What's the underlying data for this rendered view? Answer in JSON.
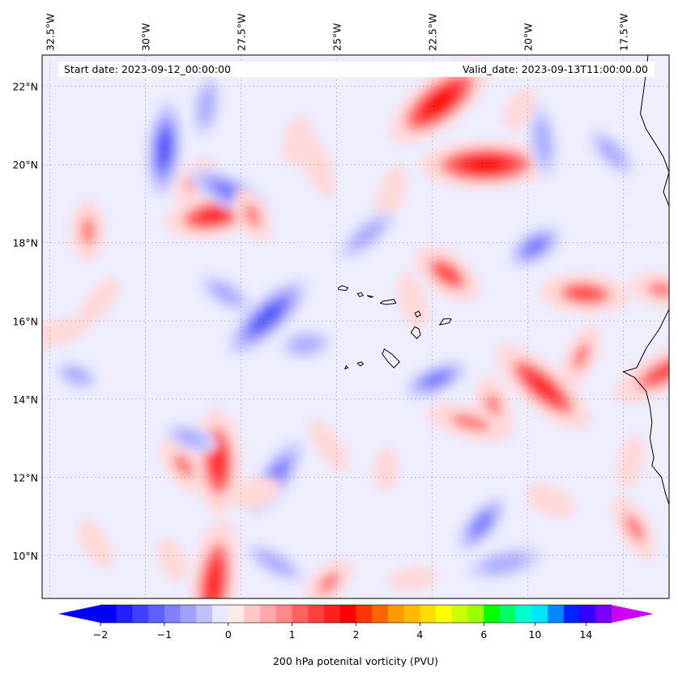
{
  "map": {
    "start_date_text": "Start date: 2023-09-12_00:00:00",
    "valid_date_text": "Valid_date: 2023-09-13T11:00:00.00",
    "extent": {
      "lon_min": -32.7,
      "lon_max": -16.3,
      "lat_min": 8.9,
      "lat_max": 22.8
    },
    "lon_ticks": [
      {
        "value": -32.5,
        "label": "32.5°W"
      },
      {
        "value": -30.0,
        "label": "30°W"
      },
      {
        "value": -27.5,
        "label": "27.5°W"
      },
      {
        "value": -25.0,
        "label": "25°W"
      },
      {
        "value": -22.5,
        "label": "22.5°W"
      },
      {
        "value": -20.0,
        "label": "20°W"
      },
      {
        "value": -17.5,
        "label": "17.5°W"
      }
    ],
    "lat_ticks": [
      {
        "value": 10,
        "label": "10°N"
      },
      {
        "value": 12,
        "label": "12°N"
      },
      {
        "value": 14,
        "label": "14°N"
      },
      {
        "value": 16,
        "label": "16°N"
      },
      {
        "value": 18,
        "label": "18°N"
      },
      {
        "value": 20,
        "label": "20°N"
      },
      {
        "value": 22,
        "label": "22°N"
      }
    ],
    "background_color": "#eeeeff",
    "features": [
      {
        "lon": -31.5,
        "lat": 18.3,
        "value": 1.5
      },
      {
        "lon": -31.2,
        "lat": 16.5,
        "value": 0.8
      },
      {
        "lon": -32.3,
        "lat": 15.7,
        "value": 0.8
      },
      {
        "lon": -31.8,
        "lat": 14.6,
        "value": -0.8
      },
      {
        "lon": -31.3,
        "lat": 10.3,
        "value": 0.8
      },
      {
        "lon": -29.5,
        "lat": 20.4,
        "value": -1.6
      },
      {
        "lon": -28.7,
        "lat": 19.6,
        "value": 1.2
      },
      {
        "lon": -28.2,
        "lat": 18.7,
        "value": 2.2
      },
      {
        "lon": -27.8,
        "lat": 19.3,
        "value": -1.4
      },
      {
        "lon": -27.2,
        "lat": 18.7,
        "value": 1.3
      },
      {
        "lon": -28.4,
        "lat": 21.5,
        "value": -1.0
      },
      {
        "lon": -26.8,
        "lat": 16.1,
        "value": -1.8
      },
      {
        "lon": -25.8,
        "lat": 15.4,
        "value": -1.1
      },
      {
        "lon": -27.9,
        "lat": 16.7,
        "value": -0.9
      },
      {
        "lon": -25.5,
        "lat": 20.0,
        "value": 0.9
      },
      {
        "lon": -26.0,
        "lat": 20.6,
        "value": 1.1
      },
      {
        "lon": -22.3,
        "lat": 21.6,
        "value": 2.8
      },
      {
        "lon": -21.1,
        "lat": 20.0,
        "value": 2.5
      },
      {
        "lon": -22.1,
        "lat": 17.2,
        "value": 2.0
      },
      {
        "lon": -23.0,
        "lat": 16.5,
        "value": 0.9
      },
      {
        "lon": -23.6,
        "lat": 19.2,
        "value": 0.8
      },
      {
        "lon": -19.8,
        "lat": 17.9,
        "value": -1.4
      },
      {
        "lon": -18.5,
        "lat": 16.7,
        "value": 1.9
      },
      {
        "lon": -19.6,
        "lat": 14.3,
        "value": 2.2
      },
      {
        "lon": -20.9,
        "lat": 13.8,
        "value": 1.5
      },
      {
        "lon": -18.6,
        "lat": 15.1,
        "value": 1.2
      },
      {
        "lon": -16.4,
        "lat": 14.7,
        "value": 2.0
      },
      {
        "lon": -16.5,
        "lat": 16.8,
        "value": 1.5
      },
      {
        "lon": -17.8,
        "lat": 20.3,
        "value": -0.9
      },
      {
        "lon": -19.6,
        "lat": 20.6,
        "value": -1.0
      },
      {
        "lon": -20.2,
        "lat": 21.4,
        "value": 0.9
      },
      {
        "lon": -22.4,
        "lat": 14.5,
        "value": -1.2
      },
      {
        "lon": -21.5,
        "lat": 13.4,
        "value": 1.4
      },
      {
        "lon": -29.0,
        "lat": 12.3,
        "value": 1.5
      },
      {
        "lon": -28.1,
        "lat": 12.4,
        "value": 2.4
      },
      {
        "lon": -26.6,
        "lat": 12.0,
        "value": -1.4
      },
      {
        "lon": -27.1,
        "lat": 11.6,
        "value": 1.1
      },
      {
        "lon": -28.8,
        "lat": 13.0,
        "value": -0.8
      },
      {
        "lon": -25.2,
        "lat": 12.8,
        "value": 0.7
      },
      {
        "lon": -23.7,
        "lat": 12.2,
        "value": 0.8
      },
      {
        "lon": -21.2,
        "lat": 10.8,
        "value": -1.2
      },
      {
        "lon": -20.6,
        "lat": 9.8,
        "value": -1.1
      },
      {
        "lon": -19.4,
        "lat": 11.4,
        "value": 1.1
      },
      {
        "lon": -17.2,
        "lat": 10.7,
        "value": 1.3
      },
      {
        "lon": -28.2,
        "lat": 9.3,
        "value": 2.4
      },
      {
        "lon": -25.2,
        "lat": 9.3,
        "value": 1.4
      },
      {
        "lon": -23.0,
        "lat": 9.4,
        "value": 0.7
      },
      {
        "lon": -26.6,
        "lat": 9.8,
        "value": -0.8
      },
      {
        "lon": -29.3,
        "lat": 9.9,
        "value": 0.9
      },
      {
        "lon": -17.3,
        "lat": 12.4,
        "value": 0.8
      },
      {
        "lon": -24.2,
        "lat": 18.2,
        "value": -0.9
      }
    ],
    "islands": [
      [
        [
          -24.95,
          16.85
        ],
        [
          -24.85,
          16.9
        ],
        [
          -24.7,
          16.85
        ],
        [
          -24.75,
          16.78
        ],
        [
          -24.95,
          16.8
        ]
      ],
      [
        [
          -24.45,
          16.7
        ],
        [
          -24.35,
          16.72
        ],
        [
          -24.3,
          16.65
        ],
        [
          -24.4,
          16.62
        ]
      ],
      [
        [
          -24.2,
          16.65
        ],
        [
          -24.1,
          16.6
        ],
        [
          -24.05,
          16.62
        ]
      ],
      [
        [
          -23.8,
          16.5
        ],
        [
          -23.5,
          16.55
        ],
        [
          -23.45,
          16.45
        ],
        [
          -23.7,
          16.42
        ],
        [
          -23.85,
          16.45
        ]
      ],
      [
        [
          -22.95,
          16.2
        ],
        [
          -22.85,
          16.25
        ],
        [
          -22.8,
          16.15
        ],
        [
          -22.9,
          16.1
        ]
      ],
      [
        [
          -22.2,
          16.05
        ],
        [
          -22.3,
          15.9
        ],
        [
          -22.05,
          15.95
        ],
        [
          -22.0,
          16.05
        ]
      ],
      [
        [
          -22.95,
          15.85
        ],
        [
          -22.85,
          15.8
        ],
        [
          -22.8,
          15.65
        ],
        [
          -22.9,
          15.55
        ],
        [
          -23.05,
          15.7
        ]
      ],
      [
        [
          -23.75,
          15.28
        ],
        [
          -23.55,
          15.15
        ],
        [
          -23.35,
          14.95
        ],
        [
          -23.5,
          14.8
        ],
        [
          -23.65,
          14.95
        ],
        [
          -23.8,
          15.15
        ]
      ],
      [
        [
          -24.35,
          14.95
        ],
        [
          -24.3,
          14.9
        ],
        [
          -24.38,
          14.85
        ],
        [
          -24.45,
          14.92
        ]
      ],
      [
        [
          -24.75,
          14.85
        ],
        [
          -24.7,
          14.8
        ],
        [
          -24.78,
          14.77
        ]
      ]
    ],
    "coastline": [
      [
        -16.85,
        22.8
      ],
      [
        -16.95,
        22.0
      ],
      [
        -17.05,
        21.3
      ],
      [
        -16.9,
        20.9
      ],
      [
        -16.7,
        20.6
      ],
      [
        -16.45,
        20.2
      ],
      [
        -16.3,
        19.8
      ],
      [
        -16.45,
        19.3
      ],
      [
        -16.2,
        18.7
      ],
      [
        -16.05,
        18.2
      ],
      [
        -16.0,
        17.5
      ],
      [
        -16.1,
        16.8
      ],
      [
        -16.3,
        16.3
      ],
      [
        -16.55,
        15.8
      ],
      [
        -16.9,
        15.3
      ],
      [
        -17.15,
        14.8
      ],
      [
        -17.5,
        14.7
      ],
      [
        -17.2,
        14.55
      ],
      [
        -16.9,
        14.2
      ],
      [
        -16.8,
        13.8
      ],
      [
        -16.75,
        13.4
      ],
      [
        -16.8,
        13.0
      ],
      [
        -16.7,
        12.5
      ],
      [
        -16.75,
        12.3
      ],
      [
        -16.5,
        12.0
      ],
      [
        -16.4,
        11.6
      ],
      [
        -16.3,
        11.3
      ]
    ],
    "colorbar": {
      "label": "200 hPa potenital vorticity (PVU)",
      "ticks": [
        {
          "value": -2,
          "label": "−2"
        },
        {
          "value": -1,
          "label": "−1"
        },
        {
          "value": 0,
          "label": "0"
        },
        {
          "value": 1,
          "label": "1"
        },
        {
          "value": 2,
          "label": "2"
        },
        {
          "value": 4,
          "label": "4"
        },
        {
          "value": 6,
          "label": "6"
        },
        {
          "value": 10,
          "label": "10"
        },
        {
          "value": 14,
          "label": "14"
        }
      ],
      "under_color": "#0000ff",
      "over_color": "#cc00ff",
      "colors": [
        "#0000ff",
        "#2020ff",
        "#4040ff",
        "#6060ff",
        "#8080ff",
        "#a0a0ff",
        "#c0c0ff",
        "#e8e8ff",
        "#ffe8e8",
        "#ffc8c8",
        "#ffa8a8",
        "#ff8888",
        "#ff6060",
        "#ff4040",
        "#ff2020",
        "#ff0000",
        "#ff3300",
        "#ff6600",
        "#ff9900",
        "#ffbb00",
        "#ffdd00",
        "#ffff00",
        "#ccff00",
        "#99ff00",
        "#00ff00",
        "#00ff66",
        "#00ffcc",
        "#00e5ff",
        "#0088ff",
        "#0022ff",
        "#3300ff",
        "#7700ff"
      ]
    }
  }
}
